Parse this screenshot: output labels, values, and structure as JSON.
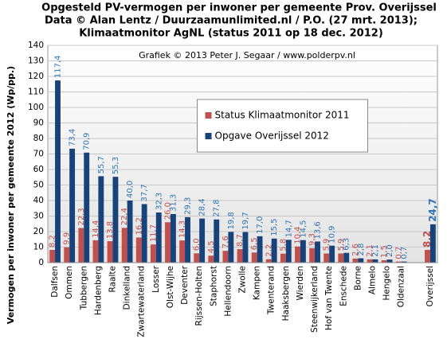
{
  "chart_data": {
    "type": "bar",
    "title": [
      "Opgesteld PV-vermogen per inwoner per gemeente Prov. Overijssel",
      "Data © Alan Lentz / Duurzaamunlimited.nl  / P.O. (27 mrt. 2013);",
      "Klimaatmonitor  AgNL (status 2011 op 18 dec. 2012)"
    ],
    "y_label": "Vermogen per inwoner per gemeente 2012 (Wp/pp.)",
    "annotation": "Grafiek © 2013 Peter J. Segaar / www.polderpv.nl",
    "categories": [
      "Dalfsen",
      "Ommen",
      "Tubbergen",
      "Hardenberg",
      "Raalte",
      "Dinkelland",
      "Zwartewaterland",
      "Losser",
      "Olst-Wijhe",
      "Deventer",
      "Rijssen-Holten",
      "Staphorst",
      "Hellendoorn",
      "Zwolle",
      "Kampen",
      "Twenterand",
      "Haaksbergen",
      "Wierden",
      "Steenwijkerland",
      "Hof van Twente",
      "Enschede",
      "Borne",
      "Almelo",
      "Hengelo",
      "Oldenzaal",
      null,
      "Overijssel"
    ],
    "series": [
      {
        "name": "Status Klimaatmonitor 2011",
        "color": "#c0504d",
        "label_color": "#c0504d",
        "values": [
          8.2,
          9.9,
          22.3,
          14.4,
          13.8,
          22.4,
          16.2,
          11.7,
          26.0,
          14.3,
          6.0,
          4.5,
          7.6,
          8.7,
          6.5,
          2.2,
          5.8,
          10.4,
          9.3,
          5.9,
          5.9,
          2.6,
          2.1,
          1.5,
          0.7,
          null,
          8.2
        ],
        "value_labels": [
          "8,2",
          "9,9",
          "22,3",
          "14,4",
          "13,8",
          "22,4",
          "16,2",
          "11,7",
          "26,0",
          "14,3",
          "6,0",
          "4,5",
          "7,6",
          "8,7",
          "6,5",
          "2,2",
          "5,8",
          "10,4",
          "9,3",
          "5,9",
          "5,9",
          "2,6",
          "2,1",
          "1,5",
          "0,7",
          null,
          "8,2"
        ]
      },
      {
        "name": "Opgave Overijssel 2012",
        "color": "#17437a",
        "label_color": "#2e75b6",
        "values": [
          117.4,
          73.4,
          70.9,
          55.7,
          55.3,
          40.0,
          37.7,
          32.3,
          31.3,
          29.3,
          28.4,
          27.8,
          19.8,
          19.7,
          17.0,
          15.5,
          14.7,
          14.5,
          13.6,
          10.9,
          6.3,
          2.8,
          2.1,
          2.0,
          0.7,
          null,
          24.7
        ],
        "value_labels": [
          "117,4",
          "73,4",
          "70,9",
          "55,7",
          "55,3",
          "40,0",
          "37,7",
          "32,3",
          "31,3",
          "29,3",
          "28,4",
          "27,8",
          "19,8",
          "19,7",
          "17,0",
          "15,5",
          "14,7",
          "14,5",
          "13,6",
          "10,9",
          "6,3",
          "2,8",
          "2,1",
          "2,0",
          "0,7",
          null,
          "24,7"
        ]
      }
    ],
    "ylim": [
      0,
      140
    ],
    "yticks": [
      0,
      10,
      20,
      30,
      40,
      50,
      60,
      70,
      80,
      90,
      100,
      110,
      120,
      130,
      140
    ],
    "grid": true,
    "legend": "center"
  }
}
